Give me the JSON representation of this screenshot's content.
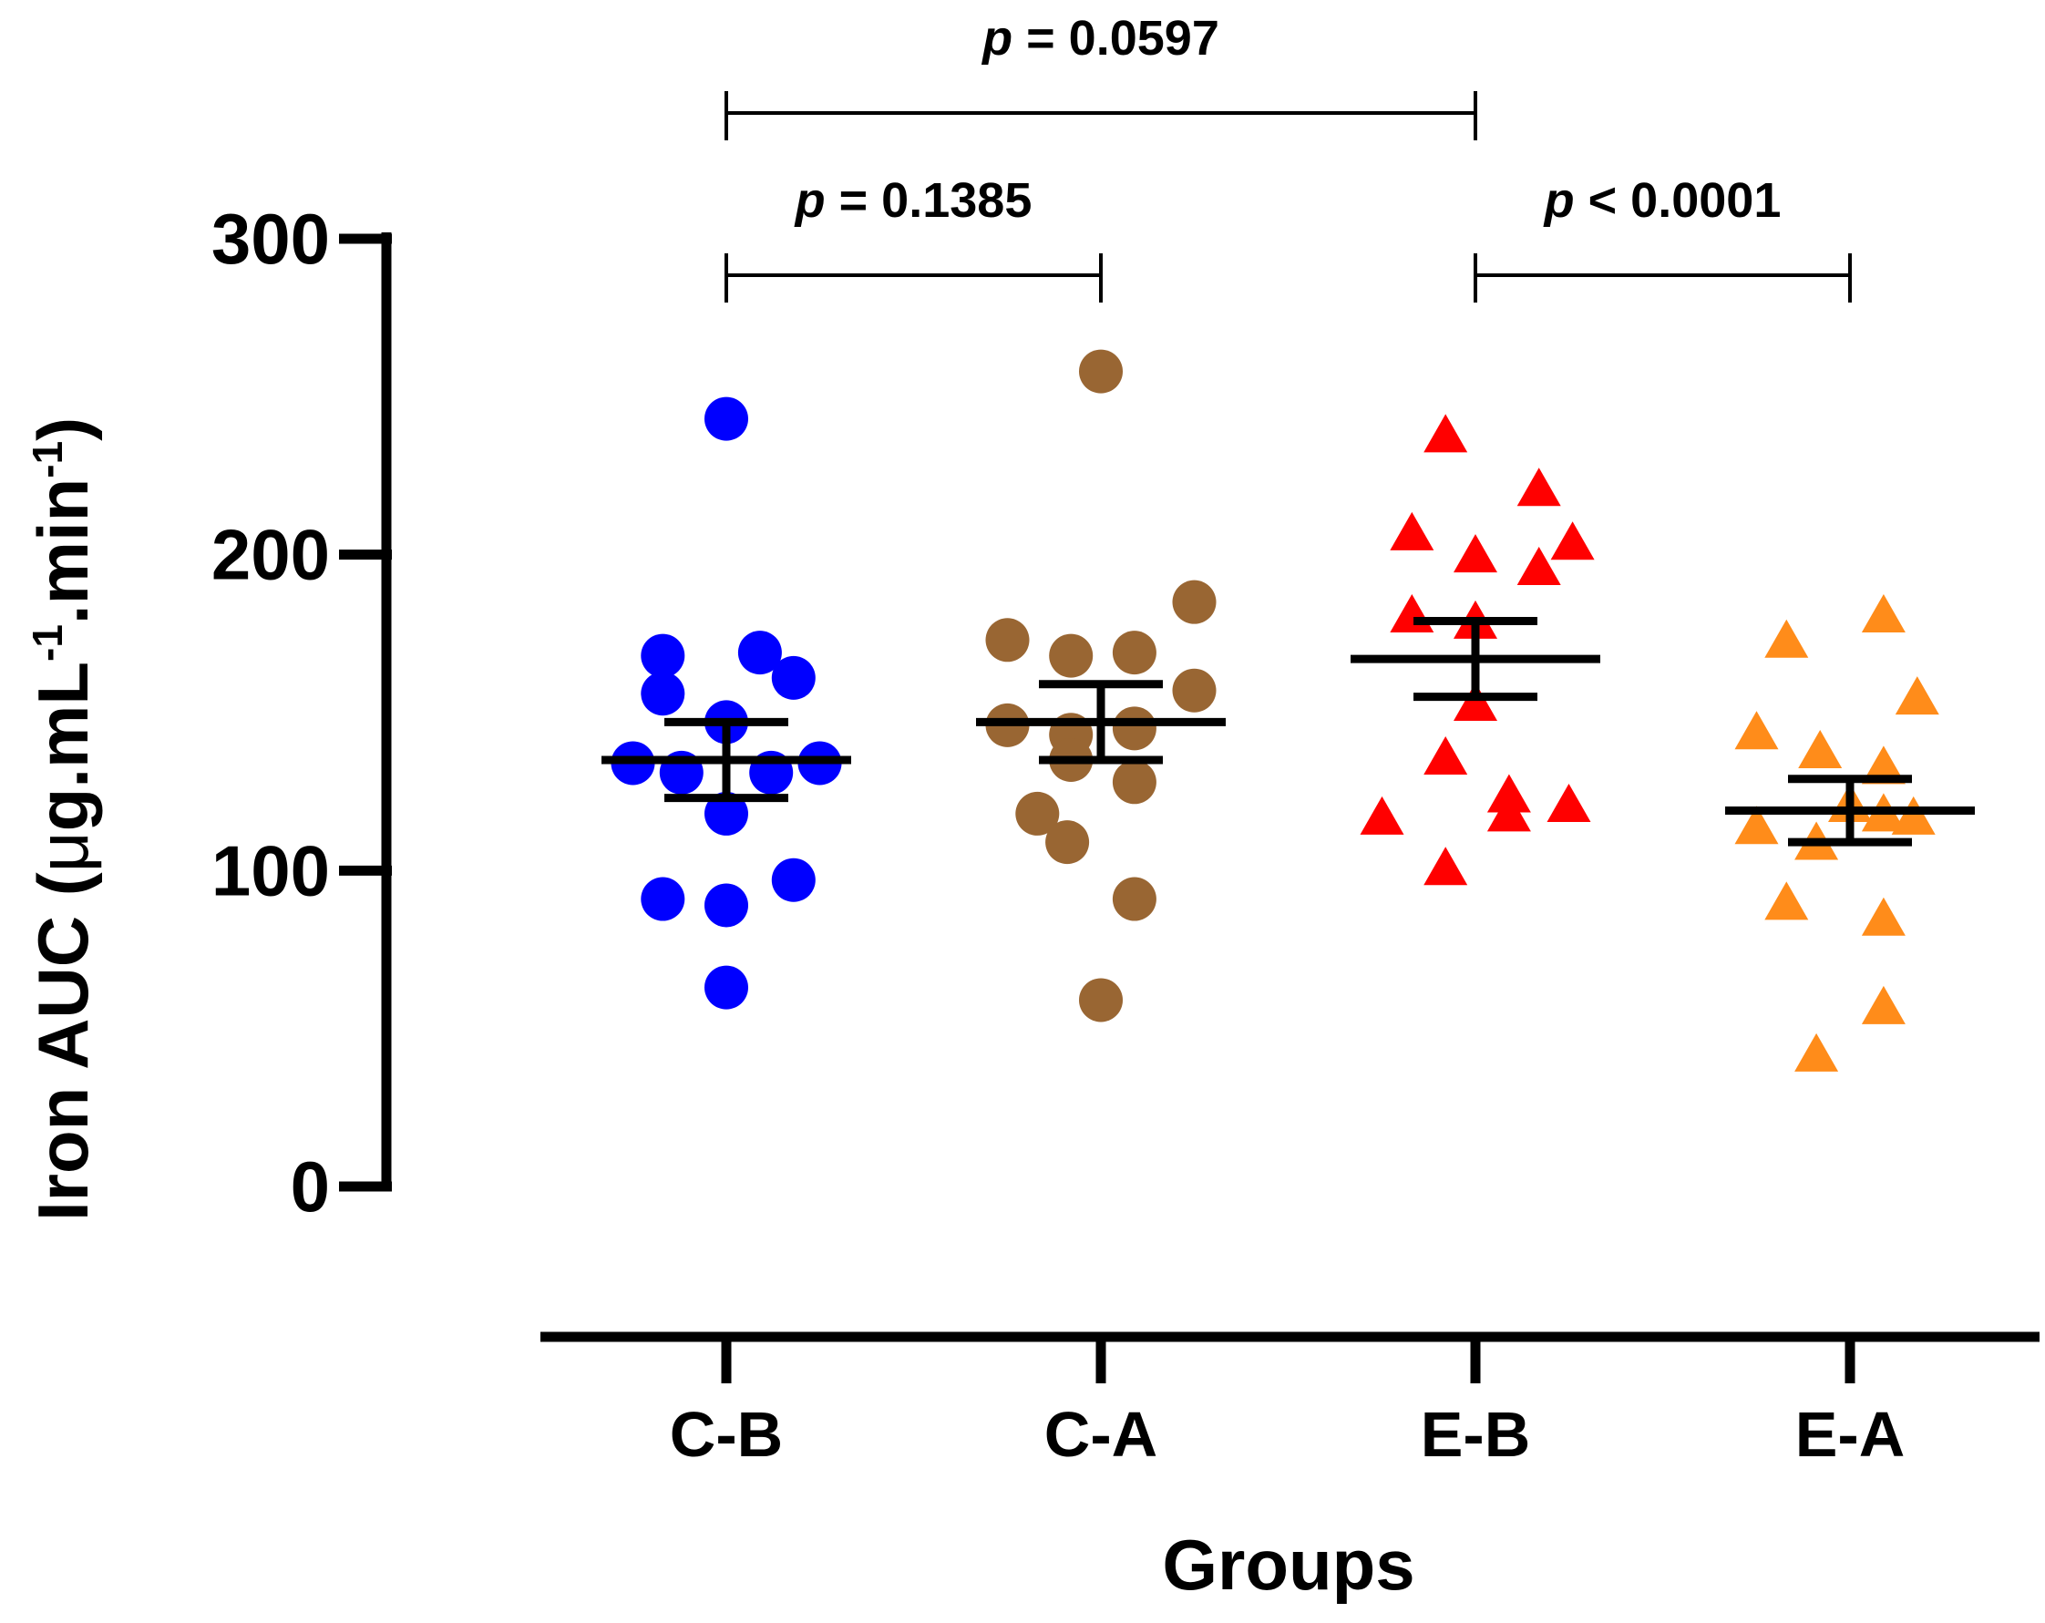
{
  "chart_data": {
    "type": "scatter",
    "title": "",
    "ylabel": {
      "main": "Iron AUC (",
      "mu": "μ",
      "unit1": "g.mL",
      "sup1": "-1",
      "unit2": ".min",
      "sup2": "-1",
      "close": ")"
    },
    "xlabel": "Groups",
    "ylim": [
      0,
      300
    ],
    "yticks": [
      0,
      100,
      200,
      300
    ],
    "yticks_labels": [
      "0",
      "100",
      "200",
      "300"
    ],
    "categories": [
      "C-B",
      "C-A",
      "E-B",
      "E-A"
    ],
    "series": [
      {
        "name": "C-B",
        "marker": "circle",
        "color": "#0000ff",
        "points": [
          {
            "offset": 0,
            "value": 243
          },
          {
            "offset": -0.17,
            "value": 168
          },
          {
            "offset": 0.09,
            "value": 169
          },
          {
            "offset": -0.17,
            "value": 156
          },
          {
            "offset": 0.18,
            "value": 161
          },
          {
            "offset": 0,
            "value": 147
          },
          {
            "offset": -0.25,
            "value": 134
          },
          {
            "offset": 0.25,
            "value": 134
          },
          {
            "offset": -0.12,
            "value": 131
          },
          {
            "offset": 0.12,
            "value": 131
          },
          {
            "offset": 0,
            "value": 118
          },
          {
            "offset": -0.17,
            "value": 91
          },
          {
            "offset": 0.18,
            "value": 97
          },
          {
            "offset": 0,
            "value": 89
          },
          {
            "offset": 0,
            "value": 63
          }
        ],
        "mean": 135,
        "sem": 12
      },
      {
        "name": "C-A",
        "marker": "circle",
        "color": "#996633",
        "points": [
          {
            "offset": 0,
            "value": 258
          },
          {
            "offset": 0.25,
            "value": 185
          },
          {
            "offset": -0.25,
            "value": 173
          },
          {
            "offset": -0.08,
            "value": 168
          },
          {
            "offset": 0.09,
            "value": 169
          },
          {
            "offset": 0.25,
            "value": 157
          },
          {
            "offset": -0.25,
            "value": 146
          },
          {
            "offset": -0.08,
            "value": 143
          },
          {
            "offset": 0.09,
            "value": 145
          },
          {
            "offset": 0.09,
            "value": 128
          },
          {
            "offset": -0.08,
            "value": 135
          },
          {
            "offset": -0.17,
            "value": 118
          },
          {
            "offset": -0.09,
            "value": 109
          },
          {
            "offset": 0.09,
            "value": 91
          },
          {
            "offset": 0,
            "value": 59
          }
        ],
        "mean": 147,
        "sem": 12
      },
      {
        "name": "E-B",
        "marker": "triangle",
        "color": "#ff0000",
        "points": [
          {
            "offset": -0.08,
            "value": 237
          },
          {
            "offset": 0.17,
            "value": 220
          },
          {
            "offset": -0.17,
            "value": 206
          },
          {
            "offset": 0.26,
            "value": 203
          },
          {
            "offset": 0,
            "value": 199
          },
          {
            "offset": 0.17,
            "value": 195
          },
          {
            "offset": -0.17,
            "value": 180
          },
          {
            "offset": 0,
            "value": 178
          },
          {
            "offset": 0,
            "value": 152
          },
          {
            "offset": -0.08,
            "value": 135
          },
          {
            "offset": 0.09,
            "value": 123
          },
          {
            "offset": 0.09,
            "value": 117
          },
          {
            "offset": 0.25,
            "value": 120
          },
          {
            "offset": -0.25,
            "value": 116
          },
          {
            "offset": -0.08,
            "value": 100
          }
        ],
        "mean": 167,
        "sem": 12
      },
      {
        "name": "E-A",
        "marker": "triangle",
        "color": "#ff8c1a",
        "points": [
          {
            "offset": 0.09,
            "value": 180
          },
          {
            "offset": -0.17,
            "value": 172
          },
          {
            "offset": 0.18,
            "value": 154
          },
          {
            "offset": -0.25,
            "value": 143
          },
          {
            "offset": -0.08,
            "value": 137
          },
          {
            "offset": 0.09,
            "value": 132
          },
          {
            "offset": 0,
            "value": 120
          },
          {
            "offset": -0.25,
            "value": 113
          },
          {
            "offset": 0.09,
            "value": 117
          },
          {
            "offset": -0.09,
            "value": 108
          },
          {
            "offset": 0.17,
            "value": 116
          },
          {
            "offset": -0.17,
            "value": 89
          },
          {
            "offset": 0.09,
            "value": 84
          },
          {
            "offset": 0.09,
            "value": 56
          },
          {
            "offset": -0.09,
            "value": 41
          }
        ],
        "mean": 119,
        "sem": 10
      }
    ],
    "comparisons": [
      {
        "from": "C-B",
        "to": "E-B",
        "level": 2,
        "p_italic": "p",
        "p_text": " = 0.0597"
      },
      {
        "from": "C-B",
        "to": "C-A",
        "level": 1,
        "p_italic": "p",
        "p_text": " = 0.1385"
      },
      {
        "from": "E-B",
        "to": "E-A",
        "level": 1,
        "p_italic": "p",
        "p_text": " < 0.0001"
      }
    ]
  }
}
